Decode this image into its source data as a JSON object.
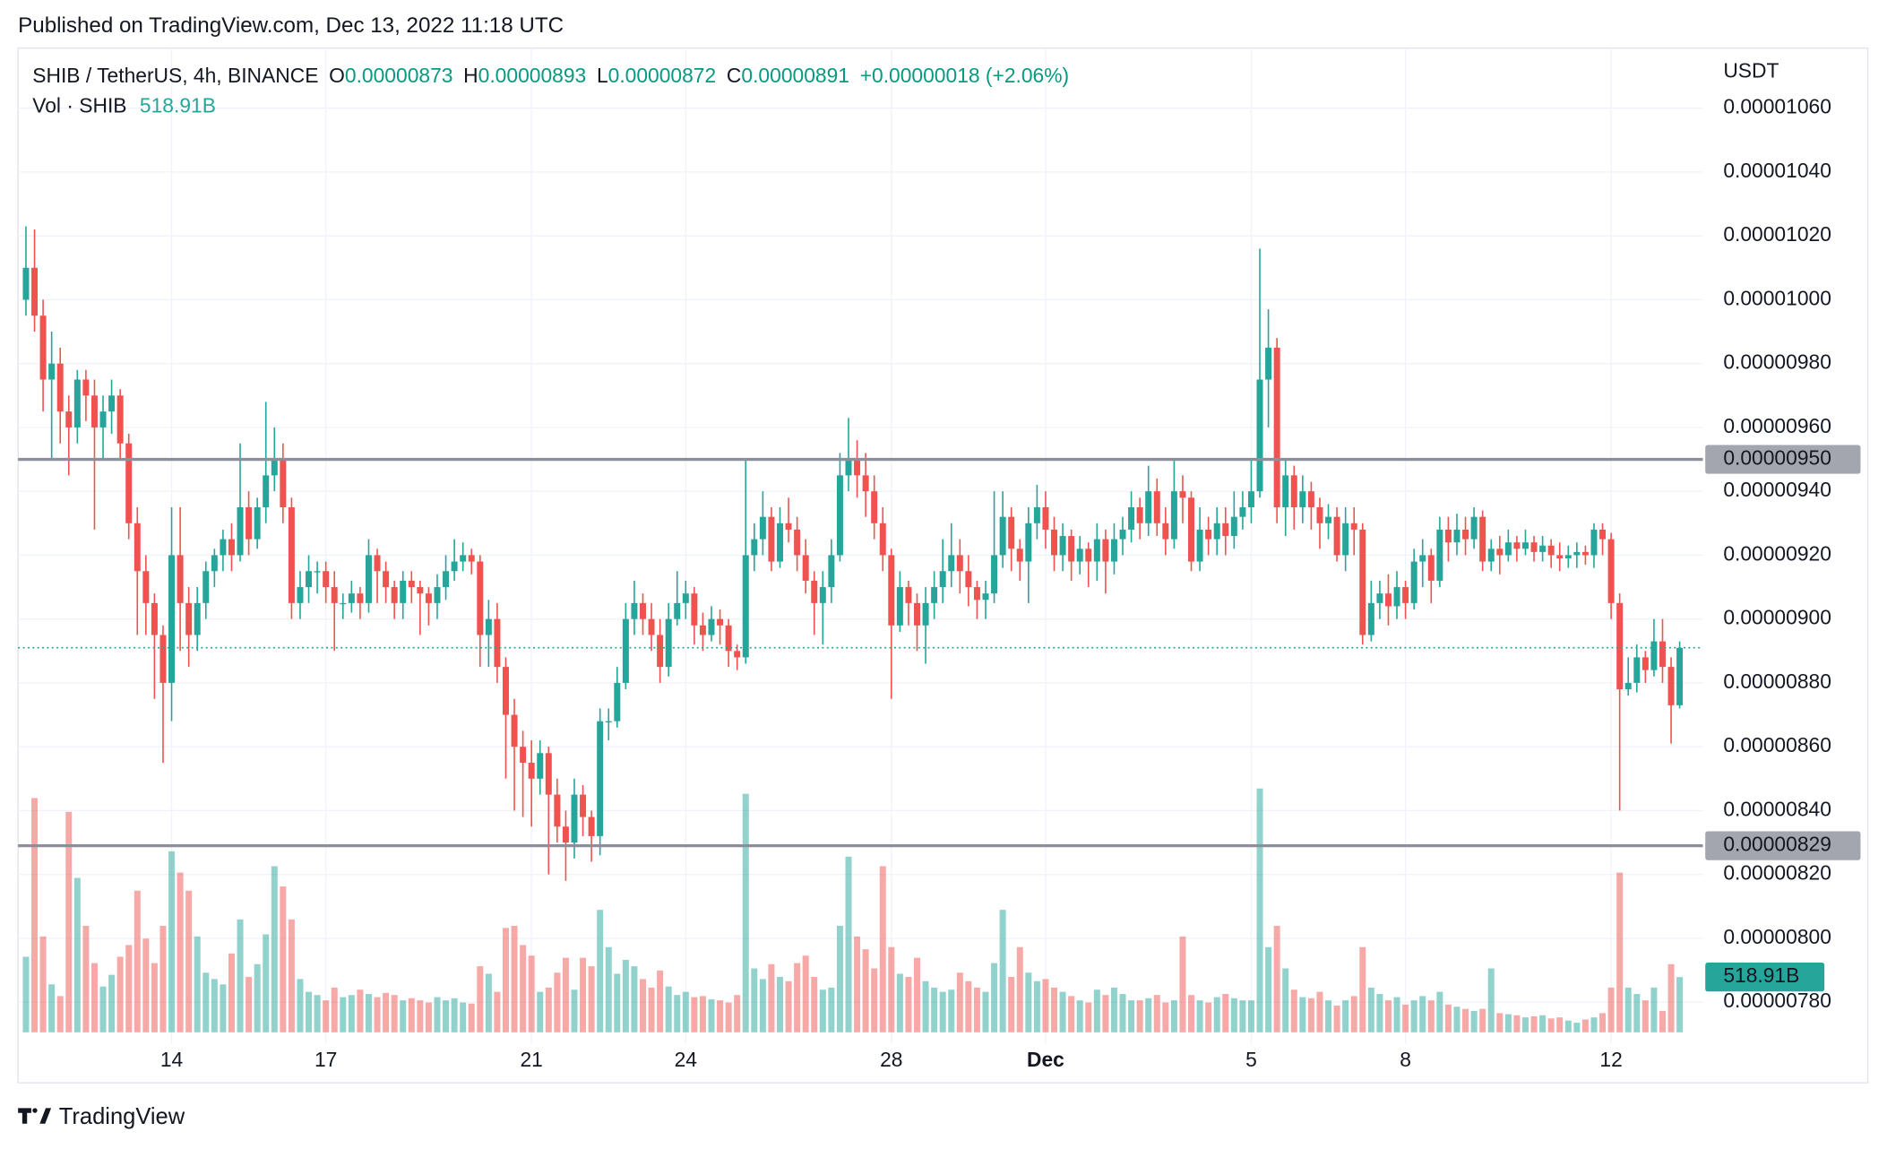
{
  "header": {
    "published": "Published on TradingView.com, Dec 13, 2022 11:18 UTC",
    "brand": "TradingView"
  },
  "chart_data": {
    "type": "candlestick",
    "symbol": "SHIB / TetherUS, 4h, BINANCE",
    "legend": {
      "open_label": "O",
      "open": "0.00000873",
      "high_label": "H",
      "high": "0.00000893",
      "low_label": "L",
      "low": "0.00000872",
      "close_label": "C",
      "close": "0.00000891",
      "change": "+0.00000018 (+2.06%)"
    },
    "volume_title": "Vol · SHIB",
    "last_volume_label": "518.91B",
    "y_axis_unit": "USDT",
    "up_color": "#26a69a",
    "down_color": "#ef5350",
    "grid": true,
    "ylim": [
      7.668e-06,
      1.0788e-05
    ],
    "yticks": [
      {
        "value": 1.06e-05,
        "label": "0.00001060"
      },
      {
        "value": 1.04e-05,
        "label": "0.00001040"
      },
      {
        "value": 1.02e-05,
        "label": "0.00001020"
      },
      {
        "value": 1e-05,
        "label": "0.00001000"
      },
      {
        "value": 9.8e-06,
        "label": "0.00000980"
      },
      {
        "value": 9.6e-06,
        "label": "0.00000960"
      },
      {
        "value": 9.4e-06,
        "label": "0.00000940"
      },
      {
        "value": 9.2e-06,
        "label": "0.00000920"
      },
      {
        "value": 9e-06,
        "label": "0.00000900"
      },
      {
        "value": 8.8e-06,
        "label": "0.00000880"
      },
      {
        "value": 8.6e-06,
        "label": "0.00000860"
      },
      {
        "value": 8.4e-06,
        "label": "0.00000840"
      },
      {
        "value": 8.2e-06,
        "label": "0.00000820"
      },
      {
        "value": 8e-06,
        "label": "0.00000800"
      },
      {
        "value": 7.8e-06,
        "label": "0.00000780"
      }
    ],
    "hlines": [
      {
        "value": 9.5e-06,
        "label": "0.00000950"
      },
      {
        "value": 8.29e-06,
        "label": "0.00000829"
      }
    ],
    "categories": [
      null,
      null,
      null,
      null,
      null,
      null,
      null,
      null,
      null,
      null,
      null,
      null,
      null,
      null,
      null,
      null,
      null,
      "14",
      null,
      null,
      null,
      null,
      null,
      null,
      null,
      null,
      null,
      null,
      null,
      null,
      null,
      null,
      null,
      null,
      null,
      "17",
      null,
      null,
      null,
      null,
      null,
      null,
      null,
      null,
      null,
      null,
      null,
      null,
      null,
      null,
      null,
      null,
      null,
      null,
      null,
      null,
      null,
      null,
      null,
      "21",
      null,
      null,
      null,
      null,
      null,
      null,
      null,
      null,
      null,
      null,
      null,
      null,
      null,
      null,
      null,
      null,
      null,
      "24",
      null,
      null,
      null,
      null,
      null,
      null,
      null,
      null,
      null,
      null,
      null,
      null,
      null,
      null,
      null,
      null,
      null,
      null,
      null,
      null,
      null,
      null,
      null,
      "28",
      null,
      null,
      null,
      null,
      null,
      null,
      null,
      null,
      null,
      null,
      null,
      null,
      null,
      null,
      null,
      null,
      null,
      "Dec",
      null,
      null,
      null,
      null,
      null,
      null,
      null,
      null,
      null,
      null,
      null,
      null,
      null,
      null,
      null,
      null,
      null,
      null,
      null,
      null,
      null,
      null,
      null,
      "5",
      null,
      null,
      null,
      null,
      null,
      null,
      null,
      null,
      null,
      null,
      null,
      null,
      null,
      null,
      null,
      null,
      null,
      "8",
      null,
      null,
      null,
      null,
      null,
      null,
      null,
      null,
      null,
      null,
      null,
      null,
      null,
      null,
      null,
      null,
      null,
      null,
      null,
      null,
      null,
      null,
      null,
      "12",
      null,
      null,
      null,
      null,
      null,
      null,
      null,
      null
    ],
    "open": [
      1e-05,
      1.01e-05,
      9.95e-06,
      9.75e-06,
      9.8e-06,
      9.65e-06,
      9.6e-06,
      9.75e-06,
      9.7e-06,
      9.6e-06,
      9.65e-06,
      9.7e-06,
      9.55e-06,
      9.3e-06,
      9.15e-06,
      9.05e-06,
      8.95e-06,
      8.8e-06,
      9.2e-06,
      9.05e-06,
      8.95e-06,
      9.05e-06,
      9.15e-06,
      9.2e-06,
      9.25e-06,
      9.2e-06,
      9.35e-06,
      9.25e-06,
      9.35e-06,
      9.45e-06,
      9.5e-06,
      9.35e-06,
      9.05e-06,
      9.1e-06,
      9.15e-06,
      9.15e-06,
      9.1e-06,
      9.05e-06,
      9.05e-06,
      9.08e-06,
      9.05e-06,
      9.2e-06,
      9.15e-06,
      9.1e-06,
      9.05e-06,
      9.12e-06,
      9.1e-06,
      9.08e-06,
      9.05e-06,
      9.1e-06,
      9.15e-06,
      9.18e-06,
      9.2e-06,
      9.18e-06,
      8.95e-06,
      9e-06,
      8.85e-06,
      8.7e-06,
      8.6e-06,
      8.55e-06,
      8.5e-06,
      8.58e-06,
      8.45e-06,
      8.35e-06,
      8.3e-06,
      8.45e-06,
      8.38e-06,
      8.32e-06,
      8.68e-06,
      8.68e-06,
      8.8e-06,
      9e-06,
      9.05e-06,
      9e-06,
      8.95e-06,
      8.85e-06,
      9e-06,
      9.05e-06,
      9.08e-06,
      8.98e-06,
      8.95e-06,
      9e-06,
      8.98e-06,
      8.9e-06,
      8.88e-06,
      9.2e-06,
      9.25e-06,
      9.32e-06,
      9.18e-06,
      9.3e-06,
      9.28e-06,
      9.2e-06,
      9.12e-06,
      9.05e-06,
      9.1e-06,
      9.2e-06,
      9.45e-06,
      9.5e-06,
      9.45e-06,
      9.4e-06,
      9.3e-06,
      9.2e-06,
      8.98e-06,
      9.1e-06,
      9.05e-06,
      8.98e-06,
      9.05e-06,
      9.1e-06,
      9.15e-06,
      9.2e-06,
      9.15e-06,
      9.1e-06,
      9.06e-06,
      9.08e-06,
      9.2e-06,
      9.32e-06,
      9.22e-06,
      9.18e-06,
      9.3e-06,
      9.35e-06,
      9.28e-06,
      9.2e-06,
      9.26e-06,
      9.18e-06,
      9.22e-06,
      9.18e-06,
      9.25e-06,
      9.18e-06,
      9.25e-06,
      9.28e-06,
      9.35e-06,
      9.3e-06,
      9.4e-06,
      9.3e-06,
      9.25e-06,
      9.4e-06,
      9.38e-06,
      9.18e-06,
      9.28e-06,
      9.25e-06,
      9.3e-06,
      9.26e-06,
      9.32e-06,
      9.35e-06,
      9.4e-06,
      9.75e-06,
      9.85e-06,
      9.35e-06,
      9.45e-06,
      9.35e-06,
      9.4e-06,
      9.35e-06,
      9.3e-06,
      9.32e-06,
      9.2e-06,
      9.3e-06,
      9.28e-06,
      8.95e-06,
      9.05e-06,
      9.08e-06,
      9.04e-06,
      9.1e-06,
      9.05e-06,
      9.18e-06,
      9.2e-06,
      9.12e-06,
      9.28e-06,
      9.24e-06,
      9.28e-06,
      9.25e-06,
      9.32e-06,
      9.18e-06,
      9.22e-06,
      9.2e-06,
      9.24e-06,
      9.22e-06,
      9.24e-06,
      9.21e-06,
      9.23e-06,
      9.2e-06,
      9.19e-06,
      9.2e-06,
      9.21e-06,
      9.2e-06,
      9.28e-06,
      9.25e-06,
      9.05e-06,
      8.78e-06,
      8.8e-06,
      8.88e-06,
      8.84e-06,
      8.93e-06,
      8.85e-06,
      8.73e-06
    ],
    "high": [
      1.023e-05,
      1.022e-05,
      1e-05,
      9.9e-06,
      9.85e-06,
      9.7e-06,
      9.78e-06,
      9.78e-06,
      9.75e-06,
      9.7e-06,
      9.75e-06,
      9.72e-06,
      9.58e-06,
      9.35e-06,
      9.2e-06,
      9.08e-06,
      8.98e-06,
      9.35e-06,
      9.35e-06,
      9.1e-06,
      9.1e-06,
      9.18e-06,
      9.22e-06,
      9.28e-06,
      9.3e-06,
      9.55e-06,
      9.4e-06,
      9.38e-06,
      9.68e-06,
      9.6e-06,
      9.55e-06,
      9.38e-06,
      9.15e-06,
      9.2e-06,
      9.18e-06,
      9.18e-06,
      9.15e-06,
      9.08e-06,
      9.12e-06,
      9.1e-06,
      9.25e-06,
      9.22e-06,
      9.18e-06,
      9.12e-06,
      9.15e-06,
      9.15e-06,
      9.12e-06,
      9.1e-06,
      9.14e-06,
      9.2e-06,
      9.25e-06,
      9.24e-06,
      9.22e-06,
      9.2e-06,
      9.06e-06,
      9.05e-06,
      8.88e-06,
      8.75e-06,
      8.65e-06,
      8.62e-06,
      8.62e-06,
      8.6e-06,
      8.5e-06,
      8.4e-06,
      8.5e-06,
      8.48e-06,
      8.4e-06,
      8.72e-06,
      8.72e-06,
      8.85e-06,
      9.05e-06,
      9.12e-06,
      9.08e-06,
      9.05e-06,
      9e-06,
      9.05e-06,
      9.15e-06,
      9.12e-06,
      9.1e-06,
      9.02e-06,
      9.04e-06,
      9.03e-06,
      9e-06,
      8.92e-06,
      9.5e-06,
      9.3e-06,
      9.4e-06,
      9.35e-06,
      9.35e-06,
      9.38e-06,
      9.32e-06,
      9.25e-06,
      9.15e-06,
      9.15e-06,
      9.25e-06,
      9.52e-06,
      9.63e-06,
      9.56e-06,
      9.52e-06,
      9.45e-06,
      9.35e-06,
      9.22e-06,
      9.15e-06,
      9.12e-06,
      9.08e-06,
      9.1e-06,
      9.15e-06,
      9.25e-06,
      9.3e-06,
      9.25e-06,
      9.2e-06,
      9.12e-06,
      9.12e-06,
      9.4e-06,
      9.4e-06,
      9.35e-06,
      9.25e-06,
      9.35e-06,
      9.42e-06,
      9.4e-06,
      9.32e-06,
      9.3e-06,
      9.28e-06,
      9.26e-06,
      9.24e-06,
      9.3e-06,
      9.28e-06,
      9.3e-06,
      9.32e-06,
      9.4e-06,
      9.38e-06,
      9.48e-06,
      9.44e-06,
      9.35e-06,
      9.5e-06,
      9.45e-06,
      9.4e-06,
      9.35e-06,
      9.32e-06,
      9.35e-06,
      9.35e-06,
      9.4e-06,
      9.4e-06,
      9.5e-06,
      1.016e-05,
      9.97e-06,
      9.88e-06,
      9.5e-06,
      9.48e-06,
      9.45e-06,
      9.43e-06,
      9.38e-06,
      9.36e-06,
      9.35e-06,
      9.35e-06,
      9.35e-06,
      9.3e-06,
      9.12e-06,
      9.12e-06,
      9.14e-06,
      9.15e-06,
      9.12e-06,
      9.22e-06,
      9.25e-06,
      9.22e-06,
      9.32e-06,
      9.32e-06,
      9.33e-06,
      9.32e-06,
      9.35e-06,
      9.34e-06,
      9.25e-06,
      9.26e-06,
      9.28e-06,
      9.26e-06,
      9.28e-06,
      9.26e-06,
      9.26e-06,
      9.25e-06,
      9.24e-06,
      9.23e-06,
      9.24e-06,
      9.23e-06,
      9.3e-06,
      9.3e-06,
      9.27e-06,
      9.08e-06,
      8.88e-06,
      8.92e-06,
      8.9e-06,
      9e-06,
      9e-06,
      8.88e-06,
      8.93e-06
    ],
    "low": [
      9.95e-06,
      9.9e-06,
      9.65e-06,
      9.5e-06,
      9.55e-06,
      9.45e-06,
      9.55e-06,
      9.62e-06,
      9.28e-06,
      9.5e-06,
      9.58e-06,
      9.5e-06,
      9.25e-06,
      8.95e-06,
      8.95e-06,
      8.75e-06,
      8.55e-06,
      8.68e-06,
      8.9e-06,
      8.85e-06,
      8.9e-06,
      9e-06,
      9.1e-06,
      9.15e-06,
      9.15e-06,
      9.18e-06,
      9.2e-06,
      9.22e-06,
      9.3e-06,
      9.4e-06,
      9.3e-06,
      9e-06,
      9e-06,
      9.05e-06,
      9.08e-06,
      9.05e-06,
      8.9e-06,
      9e-06,
      9.02e-06,
      9e-06,
      9.02e-06,
      9.05e-06,
      9.05e-06,
      9e-06,
      9e-06,
      9.05e-06,
      8.95e-06,
      8.98e-06,
      9e-06,
      9.06e-06,
      9.12e-06,
      9.15e-06,
      9.14e-06,
      8.85e-06,
      8.85e-06,
      8.8e-06,
      8.5e-06,
      8.4e-06,
      8.38e-06,
      8.35e-06,
      8.45e-06,
      8.2e-06,
      8.3e-06,
      8.18e-06,
      8.25e-06,
      8.32e-06,
      8.24e-06,
      8.26e-06,
      8.62e-06,
      8.66e-06,
      8.78e-06,
      8.95e-06,
      8.95e-06,
      8.9e-06,
      8.8e-06,
      8.82e-06,
      8.98e-06,
      9e-06,
      8.92e-06,
      8.9e-06,
      8.93e-06,
      8.92e-06,
      8.85e-06,
      8.84e-06,
      8.86e-06,
      9.15e-06,
      9.2e-06,
      9.15e-06,
      9.16e-06,
      9.24e-06,
      9.15e-06,
      9.08e-06,
      8.95e-06,
      8.92e-06,
      9.05e-06,
      9.18e-06,
      9.4e-06,
      9.38e-06,
      9.32e-06,
      9.25e-06,
      9.15e-06,
      8.75e-06,
      8.96e-06,
      8.98e-06,
      8.9e-06,
      8.86e-06,
      9e-06,
      9.05e-06,
      9.1e-06,
      9.08e-06,
      9.04e-06,
      9e-06,
      9e-06,
      9.05e-06,
      9.16e-06,
      9.15e-06,
      9.12e-06,
      9.05e-06,
      9.25e-06,
      9.22e-06,
      9.15e-06,
      9.15e-06,
      9.12e-06,
      9.14e-06,
      9.1e-06,
      9.12e-06,
      9.08e-06,
      9.14e-06,
      9.2e-06,
      9.24e-06,
      9.25e-06,
      9.26e-06,
      9.26e-06,
      9.2e-06,
      9.22e-06,
      9.3e-06,
      9.15e-06,
      9.15e-06,
      9.2e-06,
      9.2e-06,
      9.2e-06,
      9.22e-06,
      9.28e-06,
      9.3e-06,
      9.38e-06,
      9.6e-06,
      9.3e-06,
      9.26e-06,
      9.28e-06,
      9.3e-06,
      9.28e-06,
      9.22e-06,
      9.25e-06,
      9.18e-06,
      9.15e-06,
      9.2e-06,
      8.92e-06,
      8.93e-06,
      9e-06,
      8.98e-06,
      9e-06,
      9e-06,
      9.03e-06,
      9.1e-06,
      9.05e-06,
      9.1e-06,
      9.18e-06,
      9.2e-06,
      9.2e-06,
      9.22e-06,
      9.15e-06,
      9.15e-06,
      9.14e-06,
      9.18e-06,
      9.18e-06,
      9.2e-06,
      9.18e-06,
      9.18e-06,
      9.16e-06,
      9.15e-06,
      9.16e-06,
      9.16e-06,
      9.17e-06,
      9.16e-06,
      9.2e-06,
      9e-06,
      8.4e-06,
      8.76e-06,
      8.77e-06,
      8.8e-06,
      8.82e-06,
      8.8e-06,
      8.61e-06,
      8.72e-06
    ],
    "close": [
      1.01e-05,
      9.95e-06,
      9.75e-06,
      9.8e-06,
      9.65e-06,
      9.6e-06,
      9.75e-06,
      9.7e-06,
      9.6e-06,
      9.65e-06,
      9.7e-06,
      9.55e-06,
      9.3e-06,
      9.15e-06,
      9.05e-06,
      8.95e-06,
      8.8e-06,
      9.2e-06,
      9.05e-06,
      8.95e-06,
      9.05e-06,
      9.15e-06,
      9.2e-06,
      9.25e-06,
      9.2e-06,
      9.35e-06,
      9.25e-06,
      9.35e-06,
      9.45e-06,
      9.5e-06,
      9.35e-06,
      9.05e-06,
      9.1e-06,
      9.15e-06,
      9.15e-06,
      9.1e-06,
      9.05e-06,
      9.05e-06,
      9.08e-06,
      9.05e-06,
      9.2e-06,
      9.15e-06,
      9.1e-06,
      9.05e-06,
      9.12e-06,
      9.1e-06,
      9.08e-06,
      9.05e-06,
      9.1e-06,
      9.15e-06,
      9.18e-06,
      9.2e-06,
      9.18e-06,
      8.95e-06,
      9e-06,
      8.85e-06,
      8.7e-06,
      8.6e-06,
      8.55e-06,
      8.5e-06,
      8.58e-06,
      8.45e-06,
      8.35e-06,
      8.3e-06,
      8.45e-06,
      8.38e-06,
      8.32e-06,
      8.68e-06,
      8.68e-06,
      8.8e-06,
      9e-06,
      9.05e-06,
      9e-06,
      8.95e-06,
      8.85e-06,
      9e-06,
      9.05e-06,
      9.08e-06,
      8.98e-06,
      8.95e-06,
      9e-06,
      8.98e-06,
      8.9e-06,
      8.88e-06,
      9.2e-06,
      9.25e-06,
      9.32e-06,
      9.18e-06,
      9.3e-06,
      9.28e-06,
      9.2e-06,
      9.12e-06,
      9.05e-06,
      9.1e-06,
      9.2e-06,
      9.45e-06,
      9.5e-06,
      9.45e-06,
      9.4e-06,
      9.3e-06,
      9.2e-06,
      8.98e-06,
      9.1e-06,
      9.05e-06,
      8.98e-06,
      9.05e-06,
      9.1e-06,
      9.15e-06,
      9.2e-06,
      9.15e-06,
      9.1e-06,
      9.06e-06,
      9.08e-06,
      9.2e-06,
      9.32e-06,
      9.22e-06,
      9.18e-06,
      9.3e-06,
      9.35e-06,
      9.28e-06,
      9.2e-06,
      9.26e-06,
      9.18e-06,
      9.22e-06,
      9.18e-06,
      9.25e-06,
      9.18e-06,
      9.25e-06,
      9.28e-06,
      9.35e-06,
      9.3e-06,
      9.4e-06,
      9.3e-06,
      9.25e-06,
      9.4e-06,
      9.38e-06,
      9.18e-06,
      9.28e-06,
      9.25e-06,
      9.3e-06,
      9.26e-06,
      9.32e-06,
      9.35e-06,
      9.4e-06,
      9.75e-06,
      9.85e-06,
      9.35e-06,
      9.45e-06,
      9.35e-06,
      9.4e-06,
      9.35e-06,
      9.3e-06,
      9.32e-06,
      9.2e-06,
      9.3e-06,
      9.28e-06,
      8.95e-06,
      9.05e-06,
      9.08e-06,
      9.04e-06,
      9.1e-06,
      9.05e-06,
      9.18e-06,
      9.2e-06,
      9.12e-06,
      9.28e-06,
      9.24e-06,
      9.28e-06,
      9.25e-06,
      9.32e-06,
      9.18e-06,
      9.22e-06,
      9.2e-06,
      9.24e-06,
      9.22e-06,
      9.24e-06,
      9.21e-06,
      9.23e-06,
      9.2e-06,
      9.19e-06,
      9.2e-06,
      9.21e-06,
      9.2e-06,
      9.28e-06,
      9.25e-06,
      9.05e-06,
      8.78e-06,
      8.8e-06,
      8.88e-06,
      8.84e-06,
      8.93e-06,
      8.85e-06,
      8.73e-06,
      8.91e-06
    ],
    "volume": [
      710,
      2200,
      900,
      450,
      340,
      2070,
      1450,
      1000,
      650,
      430,
      540,
      710,
      820,
      1330,
      880,
      650,
      1000,
      1700,
      1500,
      1330,
      900,
      560,
      500,
      450,
      740,
      1060,
      520,
      640,
      920,
      1560,
      1370,
      1060,
      500,
      380,
      350,
      300,
      420,
      330,
      350,
      400,
      360,
      330,
      370,
      350,
      300,
      320,
      300,
      280,
      330,
      300,
      320,
      280,
      270,
      620,
      550,
      380,
      980,
      1000,
      820,
      720,
      380,
      420,
      560,
      700,
      400,
      700,
      620,
      1150,
      800,
      550,
      680,
      620,
      500,
      420,
      580,
      430,
      350,
      380,
      330,
      340,
      310,
      300,
      280,
      350,
      2240,
      600,
      500,
      640,
      520,
      480,
      650,
      720,
      520,
      400,
      420,
      1000,
      1650,
      900,
      780,
      600,
      1560,
      800,
      550,
      520,
      700,
      480,
      420,
      380,
      400,
      560,
      480,
      420,
      380,
      650,
      1150,
      520,
      800,
      560,
      480,
      500,
      420,
      380,
      340,
      300,
      280,
      400,
      350,
      420,
      360,
      300,
      300,
      320,
      350,
      280,
      300,
      900,
      350,
      300,
      280,
      330,
      360,
      320,
      300,
      300,
      2290,
      800,
      1000,
      600,
      400,
      330,
      320,
      380,
      300,
      250,
      300,
      340,
      800,
      420,
      360,
      300,
      330,
      260,
      300,
      340,
      300,
      380,
      260,
      240,
      220,
      200,
      220,
      600,
      180,
      170,
      160,
      140,
      150,
      160,
      130,
      140,
      110,
      90,
      120,
      140,
      180,
      420,
      1500,
      420,
      360,
      300,
      420,
      200,
      640,
      518.91
    ]
  }
}
